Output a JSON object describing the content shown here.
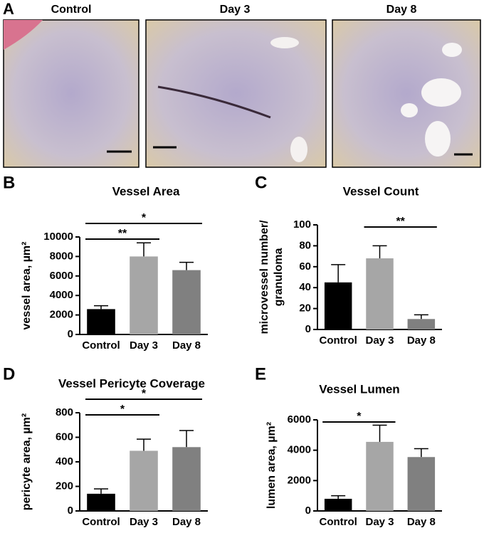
{
  "panel_a": {
    "letter": "A",
    "labels": [
      "Control",
      "Day 3",
      "Day 8"
    ]
  },
  "chart_data": [
    {
      "type": "bar",
      "panel": "B",
      "title": "Vessel Area",
      "ylabel": [
        "vessel area, µm²"
      ],
      "categories": [
        "Control",
        "Day 3",
        "Day 8"
      ],
      "values": [
        2600,
        8000,
        6600
      ],
      "errors": [
        350,
        1400,
        800
      ],
      "colors": [
        "#000000",
        "#a6a6a6",
        "#808080"
      ],
      "ylim": [
        0,
        10000
      ],
      "yticks": [
        0,
        2000,
        4000,
        6000,
        8000,
        10000
      ],
      "annotations": [
        {
          "text": "**",
          "between": [
            "Control",
            "Day 3"
          ]
        },
        {
          "text": "*",
          "between": [
            "Control",
            "Day 8"
          ]
        }
      ]
    },
    {
      "type": "bar",
      "panel": "C",
      "title": "Vessel Count",
      "ylabel": [
        "microvessel number/",
        "granuloma"
      ],
      "categories": [
        "Control",
        "Day 3",
        "Day 8"
      ],
      "values": [
        45,
        68,
        10
      ],
      "errors": [
        17,
        12,
        4
      ],
      "colors": [
        "#000000",
        "#a6a6a6",
        "#808080"
      ],
      "ylim": [
        0,
        100
      ],
      "yticks": [
        0,
        20,
        40,
        60,
        80,
        100
      ],
      "annotations": [
        {
          "text": "**",
          "between": [
            "Day 3",
            "Day 8"
          ]
        }
      ]
    },
    {
      "type": "bar",
      "panel": "D",
      "title": "Vessel Pericyte Coverage",
      "ylabel": [
        "pericyte area, µm²"
      ],
      "categories": [
        "Control",
        "Day 3",
        "Day 8"
      ],
      "values": [
        140,
        490,
        520
      ],
      "errors": [
        40,
        95,
        135
      ],
      "colors": [
        "#000000",
        "#a6a6a6",
        "#808080"
      ],
      "ylim": [
        0,
        800
      ],
      "yticks": [
        0,
        200,
        400,
        600,
        800
      ],
      "annotations": [
        {
          "text": "*",
          "between": [
            "Control",
            "Day 3"
          ]
        },
        {
          "text": "*",
          "between": [
            "Control",
            "Day 8"
          ]
        }
      ]
    },
    {
      "type": "bar",
      "panel": "E",
      "title": "Vessel Lumen",
      "ylabel": [
        "lumen area, µm²"
      ],
      "categories": [
        "Control",
        "Day 3",
        "Day 8"
      ],
      "values": [
        800,
        4550,
        3550
      ],
      "errors": [
        200,
        1100,
        550
      ],
      "colors": [
        "#000000",
        "#a6a6a6",
        "#808080"
      ],
      "ylim": [
        0,
        6000
      ],
      "yticks": [
        0,
        2000,
        4000,
        6000
      ],
      "annotations": [
        {
          "text": "*",
          "between": [
            "Control",
            "Day 3"
          ]
        }
      ]
    }
  ]
}
